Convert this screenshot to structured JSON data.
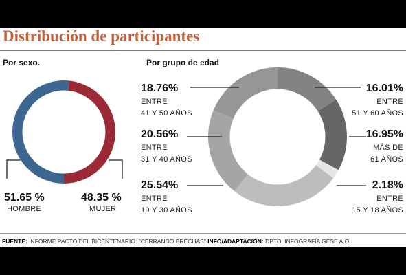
{
  "title": "Distribución de participantes",
  "chart_data": [
    {
      "type": "pie",
      "title": "Por sexo.",
      "slices": [
        {
          "name": "HOMBRE",
          "value": 51.65,
          "label": "51.65 %",
          "color": "#3d6690"
        },
        {
          "name": "MUJER",
          "value": 48.35,
          "label": "48.35 %",
          "color": "#9b2a37"
        }
      ]
    },
    {
      "type": "pie",
      "title": "Por grupo de edad",
      "slices": [
        {
          "name": "51 Y 60 AÑOS",
          "prefix": "ENTRE",
          "value": 16.01,
          "label": "16.01%",
          "color": "#838383"
        },
        {
          "name": "61 AÑOS",
          "prefix": "MÁS DE",
          "value": 16.95,
          "label": "16.95%",
          "color": "#666666"
        },
        {
          "name": "15 Y 18 AÑOS",
          "prefix": "ENTRE",
          "value": 2.18,
          "label": "2.18%",
          "color": "#e6e6e6"
        },
        {
          "name": "19 Y 30 AÑOS",
          "prefix": "ENTRE",
          "value": 25.54,
          "label": "25.54%",
          "color": "#bdbdbd"
        },
        {
          "name": "31 Y 40 AÑOS",
          "prefix": "ENTRE",
          "value": 20.56,
          "label": "20.56%",
          "color": "#a5a5a5"
        },
        {
          "name": "41 Y 50 AÑOS",
          "prefix": "ENTRE",
          "value": 18.76,
          "label": "18.76%",
          "color": "#969696"
        }
      ]
    }
  ],
  "footer": {
    "source_key": "FUENTE:",
    "source_val": " INFORME PACTO DEL BICENTENARIO: \"CERRANDO BRECHAS\" ",
    "info_key": "INFO/ADAPTACIÓN:",
    "info_val": " DPTO. INFOGRAFÍA GESE A.O."
  }
}
